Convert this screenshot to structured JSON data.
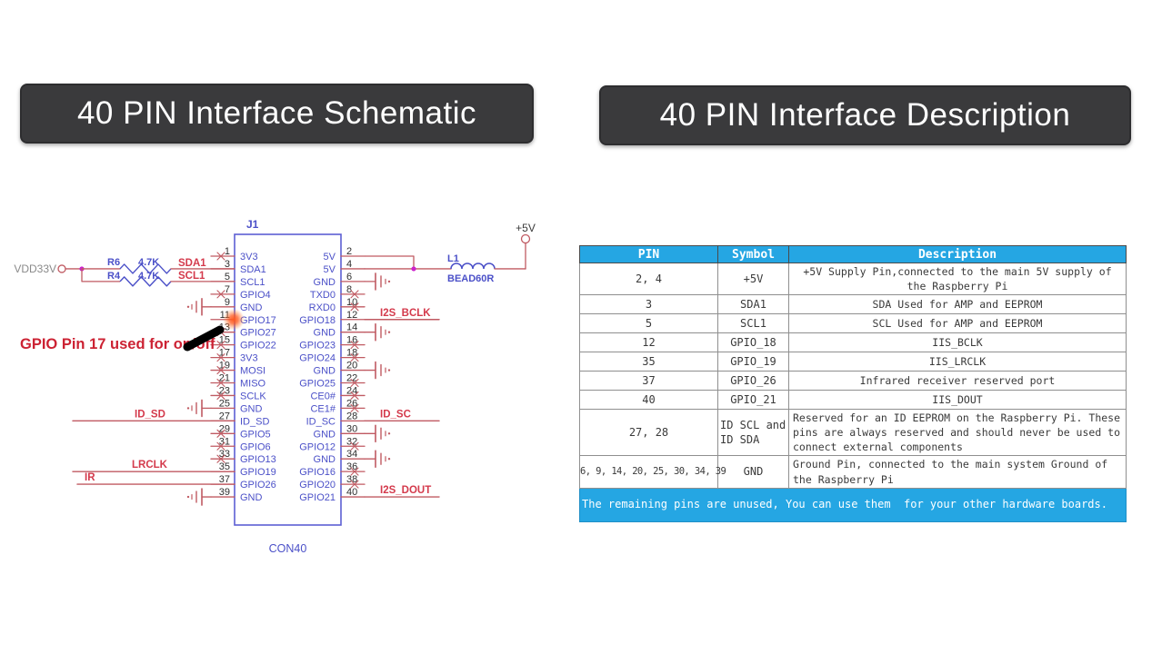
{
  "titles": {
    "left": "40 PIN Interface Schematic",
    "right": "40 PIN Interface Description"
  },
  "annotation": {
    "text": "GPIO Pin 17 used for on/off"
  },
  "schematic": {
    "connector": {
      "reference": "J1",
      "part_number": "CON40",
      "pin_rows": [
        {
          "l": 1,
          "ll": "3V3",
          "rl": "5V",
          "r": 2
        },
        {
          "l": 3,
          "ll": "SDA1",
          "rl": "5V",
          "r": 4
        },
        {
          "l": 5,
          "ll": "SCL1",
          "rl": "GND",
          "r": 6
        },
        {
          "l": 7,
          "ll": "GPIO4",
          "rl": "TXD0",
          "r": 8
        },
        {
          "l": 9,
          "ll": "GND",
          "rl": "RXD0",
          "r": 10
        },
        {
          "l": 11,
          "ll": "GPIO17",
          "rl": "GPIO18",
          "r": 12
        },
        {
          "l": 13,
          "ll": "GPIO27",
          "rl": "GND",
          "r": 14
        },
        {
          "l": 15,
          "ll": "GPIO22",
          "rl": "GPIO23",
          "r": 16
        },
        {
          "l": 17,
          "ll": "3V3",
          "rl": "GPIO24",
          "r": 18
        },
        {
          "l": 19,
          "ll": "MOSI",
          "rl": "GND",
          "r": 20
        },
        {
          "l": 21,
          "ll": "MISO",
          "rl": "GPIO25",
          "r": 22
        },
        {
          "l": 23,
          "ll": "SCLK",
          "rl": "CE0#",
          "r": 24
        },
        {
          "l": 25,
          "ll": "GND",
          "rl": "CE1#",
          "r": 26
        },
        {
          "l": 27,
          "ll": "ID_SD",
          "rl": "ID_SC",
          "r": 28
        },
        {
          "l": 29,
          "ll": "GPIO5",
          "rl": "GND",
          "r": 30
        },
        {
          "l": 31,
          "ll": "GPIO6",
          "rl": "GPIO12",
          "r": 32
        },
        {
          "l": 33,
          "ll": "GPIO13",
          "rl": "GND",
          "r": 34
        },
        {
          "l": 35,
          "ll": "GPIO19",
          "rl": "GPIO16",
          "r": 36
        },
        {
          "l": 37,
          "ll": "GPIO26",
          "rl": "GPIO20",
          "r": 38
        },
        {
          "l": 39,
          "ll": "GND",
          "rl": "GPIO21",
          "r": 40
        }
      ]
    },
    "nets": {
      "left": [
        {
          "pin": 27,
          "label": "ID_SD"
        },
        {
          "pin": 35,
          "label": "LRCLK"
        },
        {
          "pin": 37,
          "label": "IR"
        }
      ],
      "right": [
        {
          "pin": 12,
          "label": "I2S_BCLK"
        },
        {
          "pin": 28,
          "label": "ID_SC"
        },
        {
          "pin": 40,
          "label": "I2S_DOUT"
        }
      ],
      "left_ground_pins": [
        9,
        25,
        39
      ],
      "right_ground_pins": [
        6,
        14,
        20,
        30,
        34
      ],
      "left_nc_pins": [
        1,
        7,
        13,
        15,
        17,
        19,
        21,
        23,
        29,
        31,
        33
      ],
      "right_nc_pins": [
        8,
        10,
        16,
        18,
        22,
        24,
        26,
        32,
        36,
        38
      ]
    },
    "power": {
      "rail_3v3": "VDD33V",
      "rail_5v": "+5V",
      "resistors": [
        {
          "ref": "R6",
          "value": "4.7K",
          "net": "SDA1"
        },
        {
          "ref": "R4",
          "value": "4.7K",
          "net": "SCL1"
        }
      ],
      "inductor": {
        "ref": "L1",
        "value": "BEAD60R"
      }
    }
  },
  "table": {
    "columns": [
      "PIN",
      "Symbol",
      "Description"
    ],
    "rows": [
      {
        "pins": "2, 4",
        "symbol": "+5V",
        "desc": "+5V Supply Pin,connected to the main 5V supply of the Raspberry Pi"
      },
      {
        "pins": "3",
        "symbol": "SDA1",
        "desc": "SDA Used for AMP and EEPROM"
      },
      {
        "pins": "5",
        "symbol": "SCL1",
        "desc": "SCL Used for AMP and EEPROM"
      },
      {
        "pins": "12",
        "symbol": "GPIO_18",
        "desc": "IIS_BCLK"
      },
      {
        "pins": "35",
        "symbol": "GPIO_19",
        "desc": "IIS_LRCLK"
      },
      {
        "pins": "37",
        "symbol": "GPIO_26",
        "desc": "Infrared receiver reserved port"
      },
      {
        "pins": "40",
        "symbol": "GPIO_21",
        "desc": "IIS_DOUT"
      },
      {
        "pins": "27, 28",
        "symbol": "ID SCL and ID SDA",
        "desc": "Reserved for an ID EEPROM on the Raspberry Pi. These pins are always reserved and should never be used to connect external components",
        "align_left": true,
        "symbol_align_left": true
      },
      {
        "pins": "6, 9, 14, 20, 25, 30, 34, 39",
        "symbol": "GND",
        "desc": "Ground Pin, connected to the main system Ground of the Raspberry Pi",
        "align_left": true
      }
    ],
    "footer": "The remaining pins are unused, You can use them  for your other hardware boards."
  },
  "colors": {
    "accent_cyan": "#25a6e3",
    "badge_dark": "#3a3a3c",
    "wire": "#c05a62",
    "net_label": "#d43a4c",
    "component_blue": "#4b50c8",
    "box_blue": "#5d5fd3",
    "pin_number": "#2e2e2e",
    "junction_magenta": "#cc22cc",
    "glow_orange": "#ff5a1f",
    "annotation_red": "#cc2233",
    "rail_gray": "#8a8a8a"
  }
}
